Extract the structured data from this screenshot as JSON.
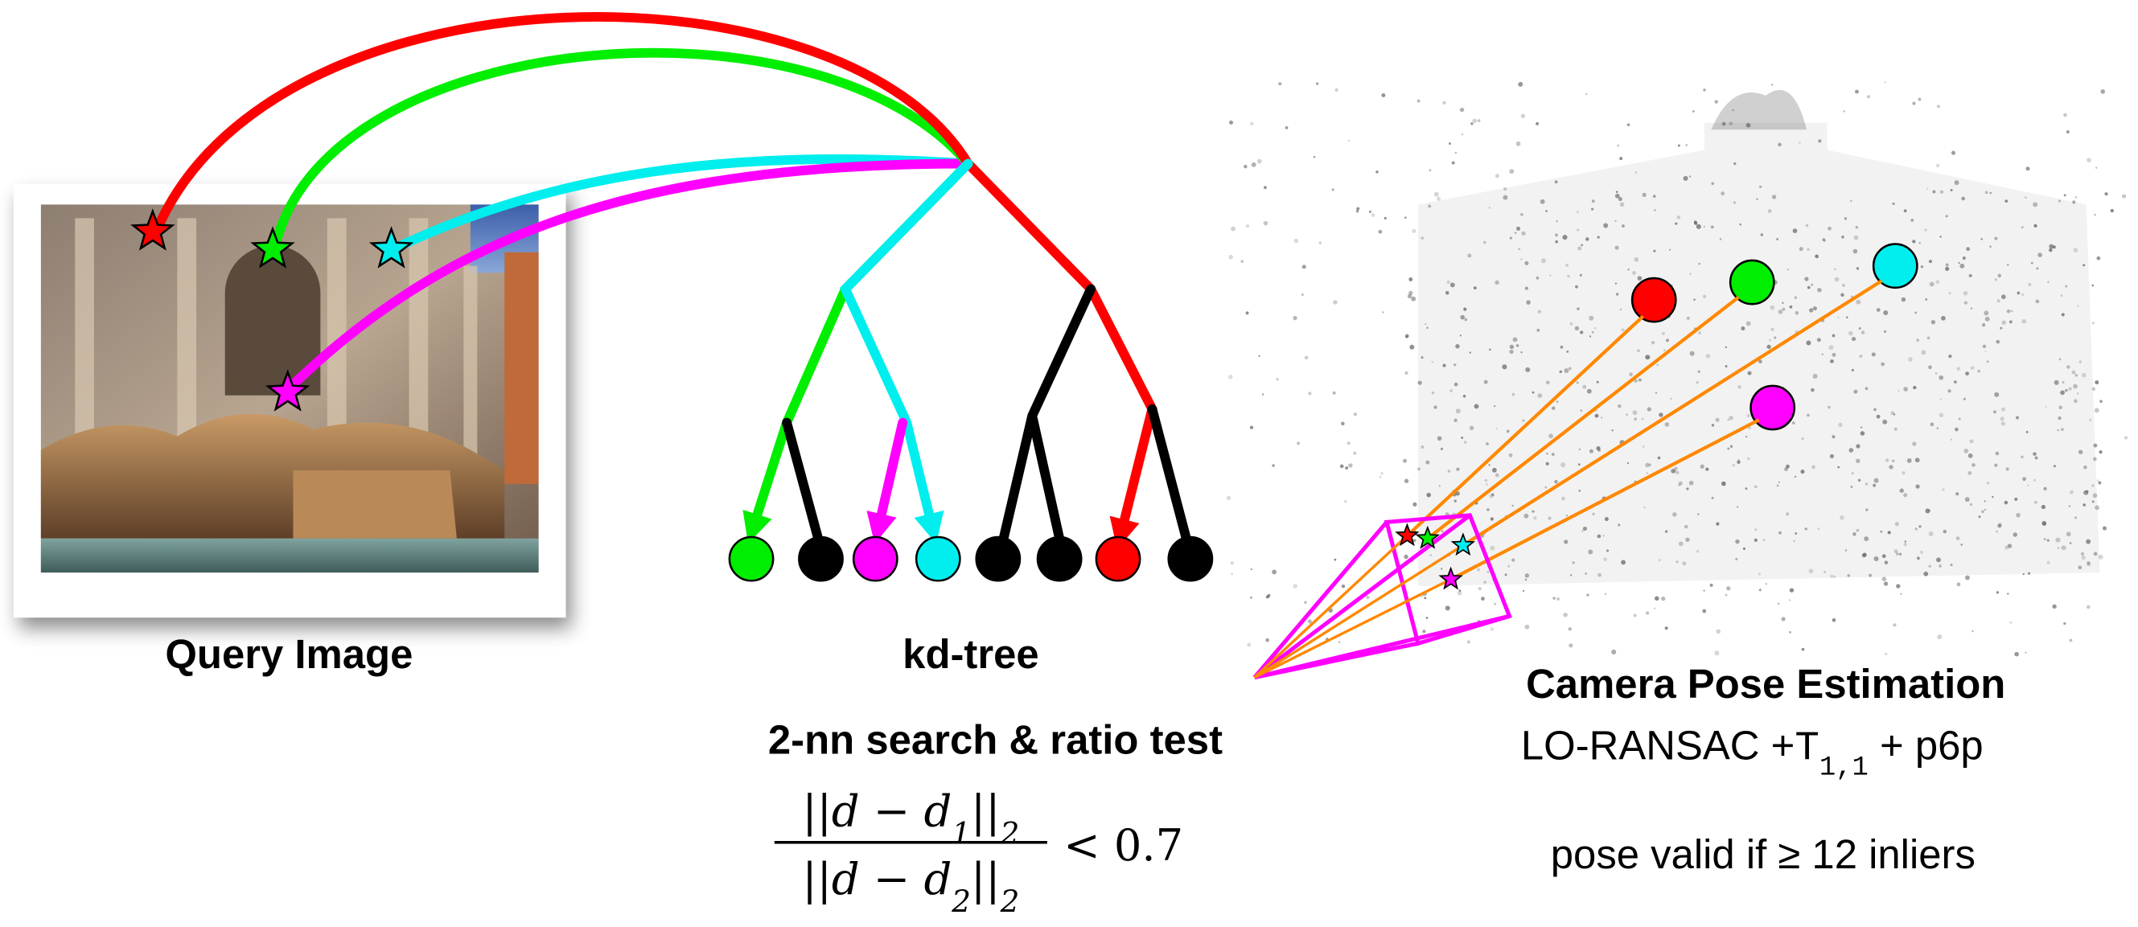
{
  "query_label": "Query Image",
  "tree_label": "kd-tree",
  "search_label": "2-nn search & ratio test",
  "ratio_test": {
    "numerator": [
      "||d − d",
      "1",
      "||",
      "2"
    ],
    "denominator": [
      "||d − d",
      "2",
      "||",
      "2"
    ],
    "relation": "< 0.7"
  },
  "pose": {
    "title": "Camera Pose Estimation",
    "method": [
      "LO-RANSAC +",
      "T",
      "1,1",
      " + p6p"
    ],
    "validity": "pose valid if ≥ 12 inliers"
  }
}
